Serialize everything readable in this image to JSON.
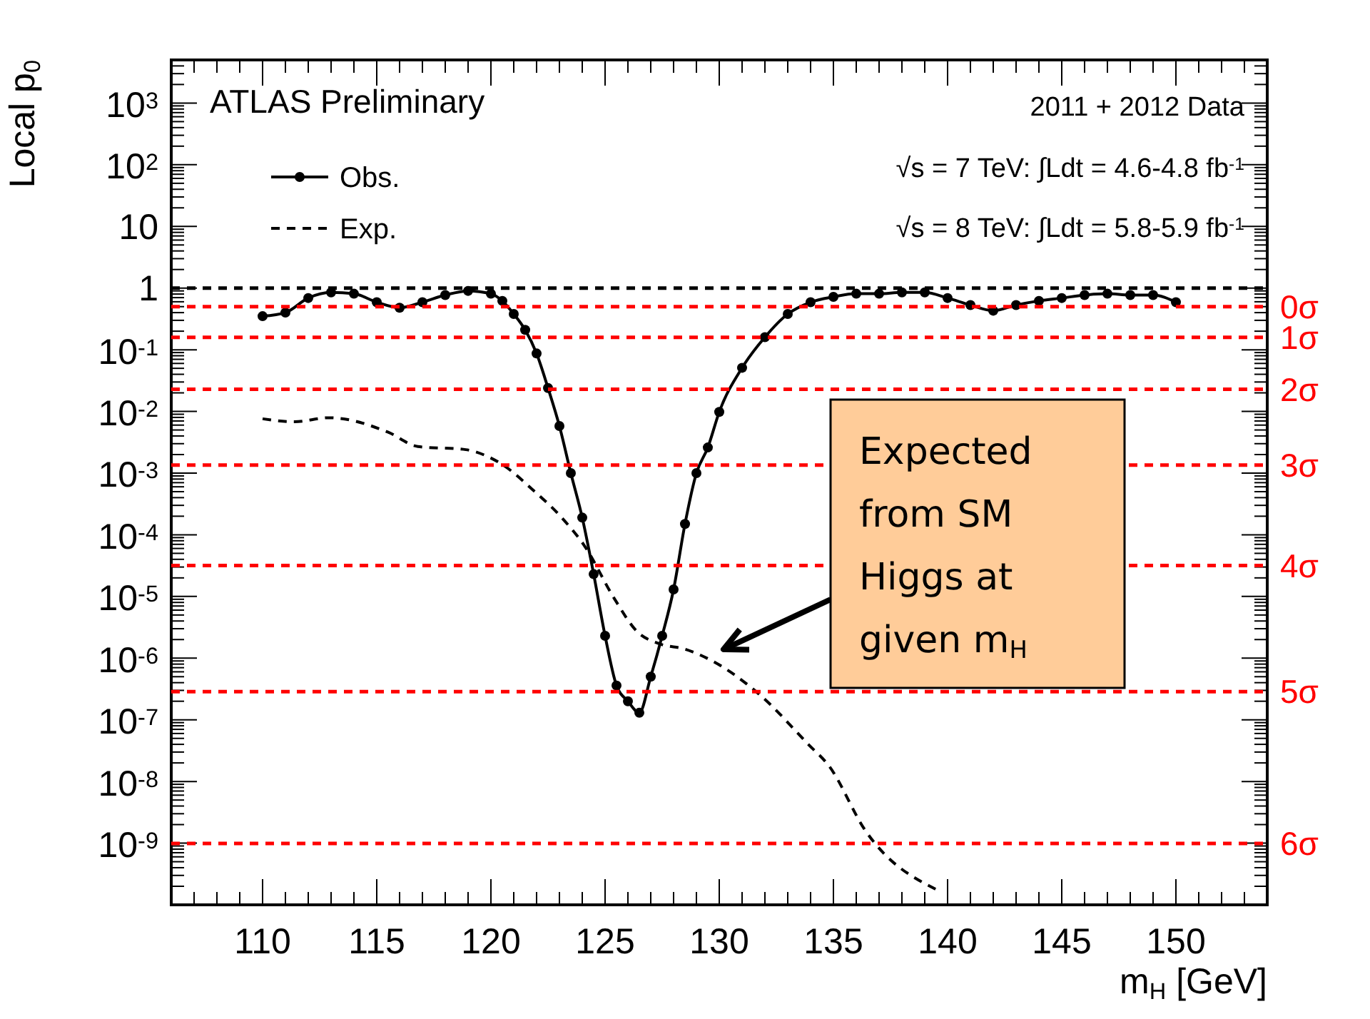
{
  "chart_data": {
    "type": "line",
    "xlabel": "m$_{H}$ [GeV]",
    "ylabel": "Local p$_{0}$",
    "xlim": [
      106,
      154
    ],
    "xticks": [
      110,
      115,
      120,
      125,
      130,
      135,
      140,
      145,
      150
    ],
    "ylim": [
      1e-10,
      5000
    ],
    "log": true,
    "yticks": [
      {
        "value": 1000,
        "label": "10$^{3}$"
      },
      {
        "value": 100,
        "label": "10$^{2}$"
      },
      10,
      1,
      {
        "value": 0.1,
        "label": "10$^{-1}$"
      },
      {
        "value": 0.01,
        "label": "10$^{-2}$"
      },
      {
        "value": 0.001,
        "label": "10$^{-3}$"
      },
      {
        "value": 0.0001,
        "label": "10$^{-4}$"
      },
      {
        "value": 1e-05,
        "label": "10$^{-5}$"
      },
      {
        "value": 1e-06,
        "label": "10$^{-6}$"
      },
      {
        "value": 1e-07,
        "label": "10$^{-7}$"
      },
      {
        "value": 1e-08,
        "label": "10$^{-8}$"
      },
      {
        "value": 1e-09,
        "label": "10$^{-9}$"
      }
    ],
    "grid": false,
    "legend": "top left",
    "series": [
      {
        "name": "Obs.",
        "color": "#000000",
        "marker": "circle",
        "line_style": "solid",
        "x": [
          110,
          111,
          112,
          113,
          114,
          115,
          116,
          117,
          118,
          119,
          120,
          120.5,
          121,
          121.5,
          122,
          122.5,
          123,
          123.5,
          124,
          124.5,
          125,
          125.5,
          126,
          126.5,
          127,
          127.5,
          128,
          128.5,
          129,
          129.5,
          130,
          131,
          132,
          133,
          134,
          135,
          136,
          137,
          138,
          139,
          140,
          141,
          142,
          143,
          144,
          145,
          146,
          147,
          148,
          149,
          150
        ],
        "values": [
          0.35,
          0.4,
          0.69,
          0.85,
          0.81,
          0.59,
          0.48,
          0.59,
          0.77,
          0.9,
          0.81,
          0.62,
          0.38,
          0.21,
          0.087,
          0.024,
          0.0058,
          0.001,
          0.00019,
          2.3e-05,
          2.3e-06,
          3.6e-07,
          2e-07,
          1.3e-07,
          5e-07,
          2.3e-06,
          1.3e-05,
          0.00015,
          0.001,
          0.0026,
          0.0098,
          0.051,
          0.16,
          0.38,
          0.59,
          0.72,
          0.81,
          0.81,
          0.85,
          0.85,
          0.69,
          0.53,
          0.43,
          0.53,
          0.62,
          0.69,
          0.77,
          0.81,
          0.77,
          0.77,
          0.59
        ]
      },
      {
        "name": "Exp.",
        "color": "#000000",
        "marker": "none",
        "line_style": "dashed",
        "x": [
          110,
          111.4,
          112.9,
          115.5,
          116.8,
          118.9,
          119.8,
          120.6,
          121.8,
          123.1,
          124.1,
          125.4,
          126.4,
          127.4,
          128.5,
          129.6,
          131.8,
          133.9,
          134.8,
          136.4,
          139.6
        ],
        "values": [
          0.0076,
          0.0068,
          0.0079,
          0.0046,
          0.0027,
          0.0024,
          0.0019,
          0.0013,
          0.00055,
          0.00019,
          6.6e-05,
          9.3e-06,
          2.7e-06,
          1.7e-06,
          1.4e-06,
          9.4e-07,
          2.5e-07,
          4e-08,
          1.8e-08,
          1.6e-09,
          1.7e-10
        ]
      }
    ],
    "ref_lines": [
      {
        "axis": "y",
        "value": 1,
        "label": null,
        "color": "#000000",
        "line_style": "dashed"
      },
      {
        "axis": "y",
        "value": 0.5,
        "label": "0σ",
        "color": "#ff0000",
        "line_style": "dashed"
      },
      {
        "axis": "y",
        "value": 0.159,
        "label": "1σ",
        "color": "#ff0000",
        "line_style": "dashed"
      },
      {
        "axis": "y",
        "value": 0.0228,
        "label": "2σ",
        "color": "#ff0000",
        "line_style": "dashed"
      },
      {
        "axis": "y",
        "value": 0.00135,
        "label": "3σ",
        "color": "#ff0000",
        "line_style": "dashed"
      },
      {
        "axis": "y",
        "value": 3.17e-05,
        "label": "4σ",
        "color": "#ff0000",
        "line_style": "dashed"
      },
      {
        "axis": "y",
        "value": 2.87e-07,
        "label": "5σ",
        "color": "#ff0000",
        "line_style": "dashed"
      },
      {
        "axis": "y",
        "value": 9.9e-10,
        "label": "6σ",
        "color": "#ff0000",
        "line_style": "dashed"
      }
    ],
    "annotations": [
      "ATLAS Preliminary",
      "2011 + 2012 Data",
      "√s = 7 TeV:  ∫Ldt = 4.6-4.8 fb$^{-1}$",
      "√s = 8 TeV:  ∫Ldt = 5.8-5.9 fb$^{-1}$",
      "Expected from SM Higgs at given m$_{H}$"
    ]
  }
}
